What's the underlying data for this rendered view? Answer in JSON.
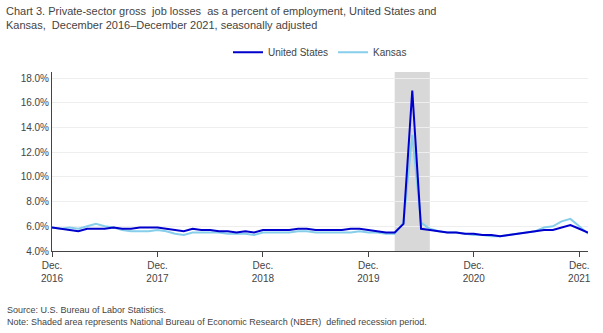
{
  "chart_data": {
    "type": "line",
    "title": "Chart 3. Private-sector gross  job losses  as a percent of employment, United States and\nKansas,  December 2016–December 2021, seasonally adjusted",
    "annotations": [
      "Source: U.S. Bureau of Labor Statistics.",
      "Note: Shaded area represents National Bureau of Economic Research (NBER)  defined recession period."
    ],
    "categories": [
      "Dec.\n2016",
      null,
      null,
      null,
      null,
      null,
      null,
      null,
      null,
      null,
      null,
      null,
      "Dec.\n2017",
      null,
      null,
      null,
      null,
      null,
      null,
      null,
      null,
      null,
      null,
      null,
      "Dec.\n2018",
      null,
      null,
      null,
      null,
      null,
      null,
      null,
      null,
      null,
      null,
      null,
      "Dec.\n2019",
      null,
      null,
      null,
      null,
      null,
      null,
      null,
      null,
      null,
      null,
      null,
      "Dec.\n2020",
      null,
      null,
      null,
      null,
      null,
      null,
      null,
      null,
      null,
      null,
      null,
      "Dec.\n2021",
      null
    ],
    "series": [
      {
        "name": "United States",
        "color": "#0000cc",
        "values": [
          0.059,
          0.058,
          0.057,
          0.056,
          0.058,
          0.058,
          0.058,
          0.059,
          0.058,
          0.058,
          0.059,
          0.059,
          0.059,
          0.058,
          0.057,
          0.056,
          0.058,
          0.057,
          0.057,
          0.056,
          0.056,
          0.055,
          0.056,
          0.055,
          0.057,
          0.057,
          0.057,
          0.057,
          0.058,
          0.058,
          0.057,
          0.057,
          0.057,
          0.057,
          0.058,
          0.058,
          0.057,
          0.056,
          0.055,
          0.055,
          0.062,
          0.17,
          0.058,
          0.057,
          0.056,
          0.055,
          0.055,
          0.054,
          0.054,
          0.053,
          0.053,
          0.052,
          0.053,
          0.054,
          0.055,
          0.056,
          0.057,
          0.057,
          0.059,
          0.061,
          0.058,
          0.055
        ]
      },
      {
        "name": "Kansas",
        "color": "#87ceeb",
        "values": [
          0.059,
          0.058,
          0.059,
          0.058,
          0.06,
          0.062,
          0.06,
          0.059,
          0.057,
          0.056,
          0.056,
          0.056,
          0.057,
          0.056,
          0.054,
          0.053,
          0.055,
          0.055,
          0.055,
          0.055,
          0.054,
          0.054,
          0.054,
          0.053,
          0.055,
          0.055,
          0.055,
          0.055,
          0.056,
          0.056,
          0.055,
          0.055,
          0.055,
          0.055,
          0.055,
          0.056,
          0.055,
          0.055,
          0.054,
          0.054,
          0.063,
          0.134,
          0.063,
          0.058,
          0.056,
          0.055,
          0.055,
          0.054,
          0.053,
          0.053,
          0.052,
          0.052,
          0.053,
          0.054,
          0.055,
          0.056,
          0.059,
          0.06,
          0.064,
          0.066,
          0.06,
          0.054
        ]
      }
    ],
    "shading": {
      "from": 39,
      "to": 43,
      "color": "#d8d8d8"
    },
    "ylim": [
      0.04,
      0.185
    ],
    "yticks": [
      {
        "value": 0.04,
        "label": "4.0%"
      },
      {
        "value": 0.06,
        "label": "6.0%"
      },
      {
        "value": 0.08,
        "label": "8.0%"
      },
      {
        "value": 0.1,
        "label": "10.0%"
      },
      {
        "value": 0.12,
        "label": "12.0%"
      },
      {
        "value": 0.14,
        "label": "14.0%"
      },
      {
        "value": 0.16,
        "label": "16.0%"
      },
      {
        "value": 0.18,
        "label": "18.0%"
      }
    ],
    "grid": true,
    "legend": "top"
  }
}
